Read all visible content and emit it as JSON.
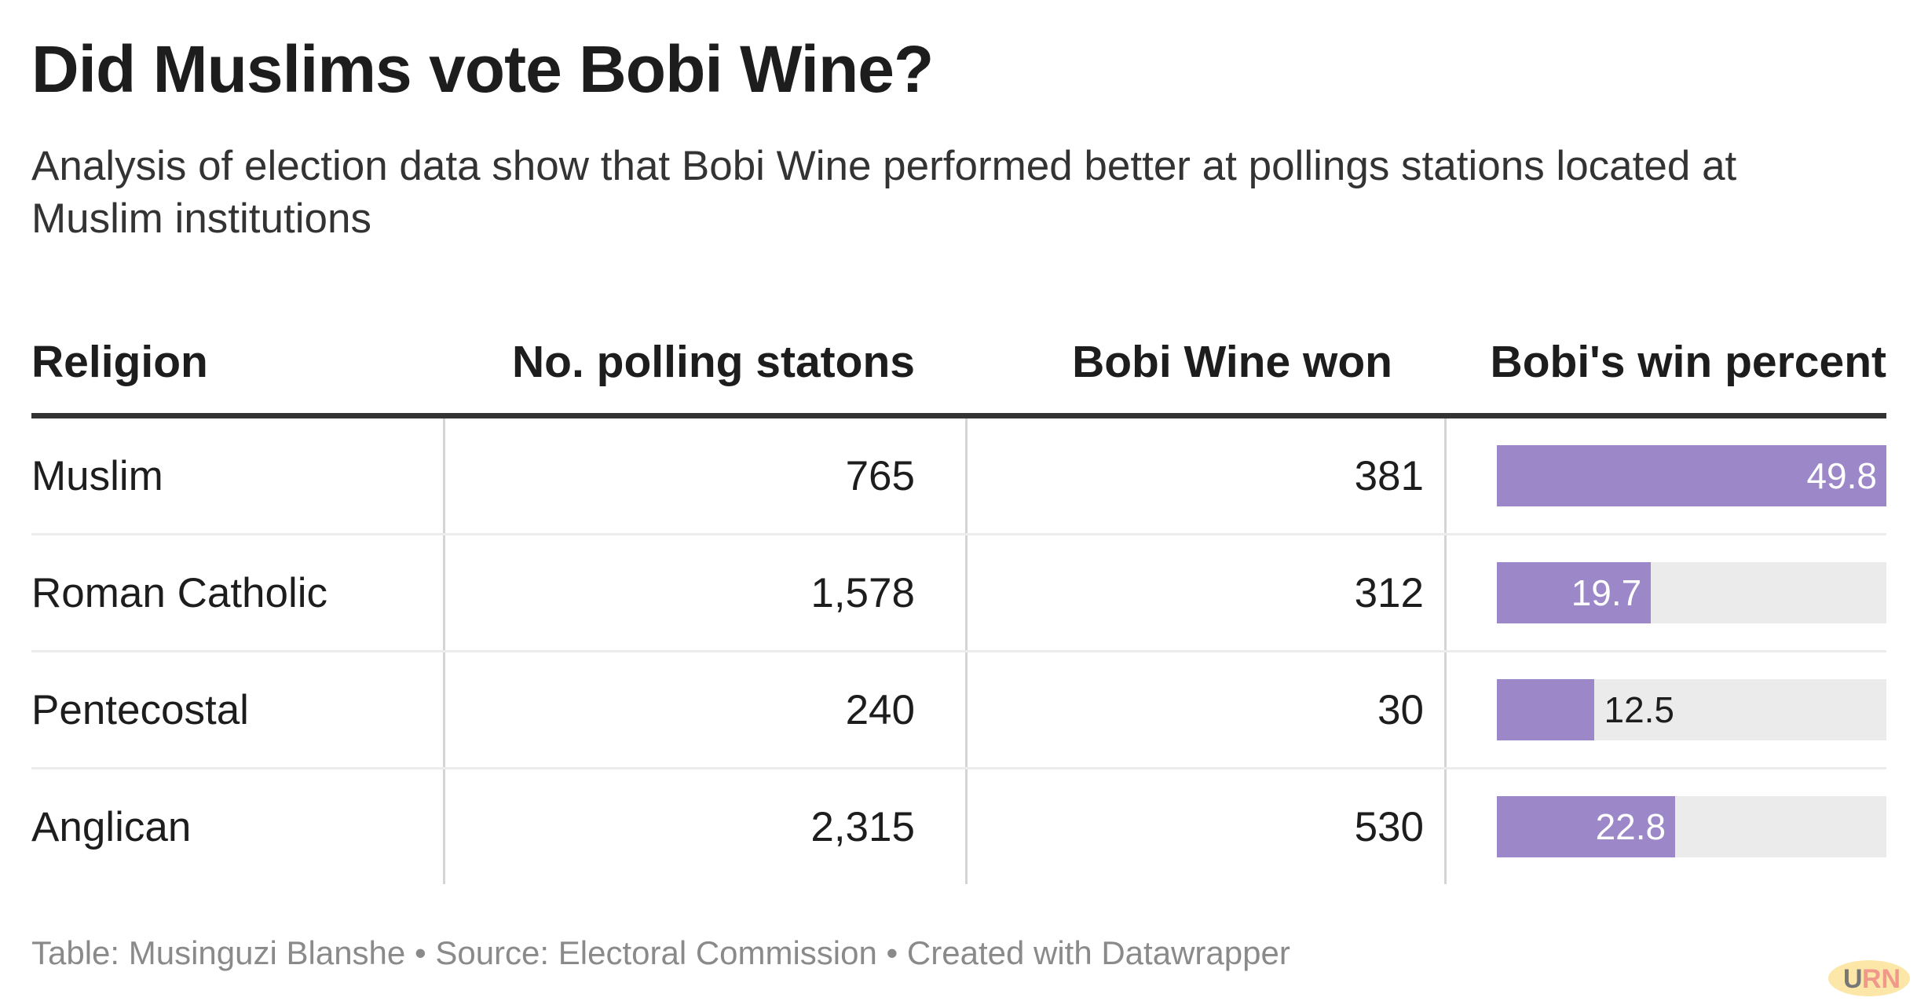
{
  "title": "Did Muslims vote Bobi Wine?",
  "subtitle": "Analysis of election data show that Bobi Wine performed better at pollings stations located at Muslim institutions",
  "footer": {
    "table": "Table: Musinguzi Blanshe",
    "sep": " • ",
    "source": "Source: Electoral Commission",
    "created": "Created with Datawrapper"
  },
  "logo": {
    "text": "URN"
  },
  "colors": {
    "bar": "#9c88c8",
    "bar_bg": "#ebebeb"
  },
  "chart_data": {
    "type": "table",
    "columns": [
      "Religion",
      "No. polling statons",
      "Bobi Wine won",
      "Bobi's win percent"
    ],
    "rows": [
      {
        "religion": "Muslim",
        "stations": "765",
        "won": "381",
        "percent": 49.8,
        "percent_label": "49.8"
      },
      {
        "religion": "Roman Catholic",
        "stations": "1,578",
        "won": "312",
        "percent": 19.7,
        "percent_label": "19.7"
      },
      {
        "religion": "Pentecostal",
        "stations": "240",
        "won": "30",
        "percent": 12.5,
        "percent_label": "12.5"
      },
      {
        "religion": "Anglican",
        "stations": "2,315",
        "won": "530",
        "percent": 22.8,
        "percent_label": "22.8"
      }
    ],
    "bar_max": 49.8
  }
}
